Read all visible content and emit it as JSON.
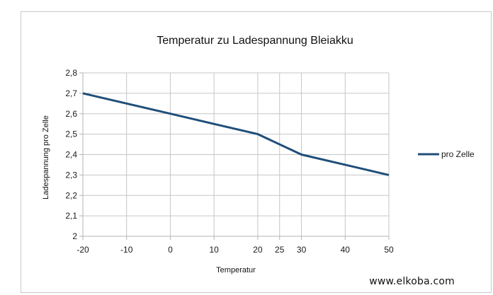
{
  "chart_data": {
    "type": "line",
    "title": "Temperatur zu Ladespannung Bleiakku",
    "xlabel": "Temperatur",
    "ylabel": "Ladespannung pro Zelle",
    "x": [
      -20,
      -10,
      0,
      10,
      20,
      30,
      40,
      50
    ],
    "x_ticks": [
      "-20",
      "-10",
      "0",
      "10",
      "20",
      "25",
      "30",
      "40",
      "50"
    ],
    "x_tick_values": [
      -20,
      -10,
      0,
      10,
      20,
      25,
      30,
      40,
      50
    ],
    "y_ticks": [
      "2",
      "2,1",
      "2,2",
      "2,3",
      "2,4",
      "2,5",
      "2,6",
      "2,7",
      "2,8"
    ],
    "y_tick_values": [
      2.0,
      2.1,
      2.2,
      2.3,
      2.4,
      2.5,
      2.6,
      2.7,
      2.8
    ],
    "xlim": [
      -20,
      50
    ],
    "ylim": [
      2.0,
      2.8
    ],
    "grid": true,
    "legend_position": "right",
    "series": [
      {
        "name": "pro Zelle",
        "color": "#1f4e79",
        "x": [
          -20,
          -10,
          0,
          10,
          20,
          30,
          40,
          50
        ],
        "values": [
          2.7,
          2.65,
          2.6,
          2.55,
          2.5,
          2.4,
          2.35,
          2.3
        ]
      }
    ]
  },
  "watermark": "www.elkoba.com"
}
